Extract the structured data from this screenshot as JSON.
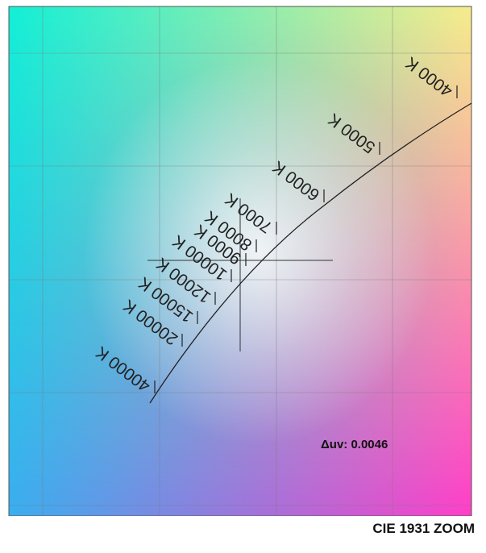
{
  "title": "CIE 1931 ZOOM",
  "delta_uv_label": "Δuv: 0.0046",
  "colors": {
    "top_left": "#12f0d5",
    "top_right": "#f6ef8a",
    "bottom_left": "#3aaef0",
    "bottom_right": "#ff3ec9",
    "center_white": "#ffffff",
    "line": "#222222",
    "grid": "#7a7a7a"
  },
  "chart_data": {
    "type": "diagram",
    "cct_ticks": [
      {
        "label": "4000 K"
      },
      {
        "label": "5000 K"
      },
      {
        "label": "6000 K"
      },
      {
        "label": "7000 K"
      },
      {
        "label": "8000 K"
      },
      {
        "label": "9000 K"
      },
      {
        "label": "10000 K"
      },
      {
        "label": "12000 K"
      },
      {
        "label": "15000 K"
      },
      {
        "label": "20000 K"
      },
      {
        "label": "40000 K"
      }
    ],
    "grid": true,
    "crosshair": true
  }
}
